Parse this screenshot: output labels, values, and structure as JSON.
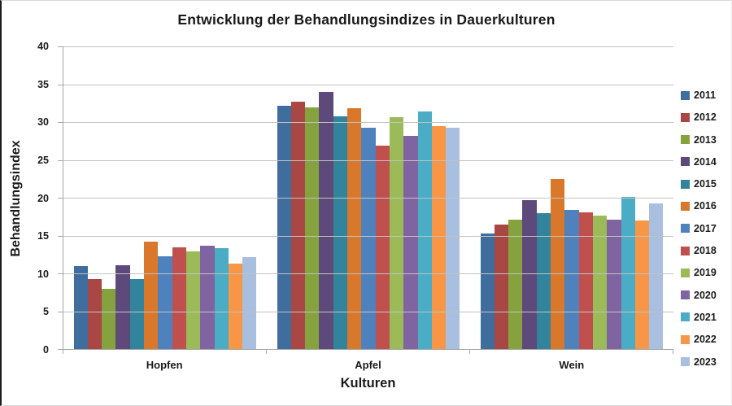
{
  "page": {
    "title": "Entwicklung der Behandlungsindizes in Dauerkulturen"
  },
  "chart_data": {
    "type": "bar",
    "title": "Entwicklung der Behandlungsindizes in Dauerkulturen",
    "xlabel": "Kulturen",
    "ylabel": "Behandlungsindex",
    "ylim": [
      0,
      40
    ],
    "ytick_step": 5,
    "grid": "horizontal",
    "legend_position": "right",
    "categories": [
      "Hopfen",
      "Apfel",
      "Wein"
    ],
    "series": [
      {
        "name": "2011",
        "color": "#3F6D9E",
        "values": [
          11.0,
          32.2,
          15.3
        ]
      },
      {
        "name": "2012",
        "color": "#A84743",
        "values": [
          9.3,
          32.7,
          16.4
        ]
      },
      {
        "name": "2013",
        "color": "#86A23F",
        "values": [
          8.0,
          31.9,
          17.1
        ]
      },
      {
        "name": "2014",
        "color": "#5E497B",
        "values": [
          11.1,
          34.0,
          19.7
        ]
      },
      {
        "name": "2015",
        "color": "#31849B",
        "values": [
          9.2,
          30.8,
          18.0
        ]
      },
      {
        "name": "2016",
        "color": "#D9772B",
        "values": [
          14.2,
          31.8,
          22.5
        ]
      },
      {
        "name": "2017",
        "color": "#4F81BD",
        "values": [
          12.3,
          29.3,
          18.4
        ]
      },
      {
        "name": "2018",
        "color": "#C0504D",
        "values": [
          13.4,
          26.9,
          18.1
        ]
      },
      {
        "name": "2019",
        "color": "#9BBB59",
        "values": [
          12.9,
          30.6,
          17.6
        ]
      },
      {
        "name": "2020",
        "color": "#8064A2",
        "values": [
          13.7,
          28.2,
          17.1
        ]
      },
      {
        "name": "2021",
        "color": "#4BACC6",
        "values": [
          13.3,
          31.4,
          20.1
        ]
      },
      {
        "name": "2022",
        "color": "#F79646",
        "values": [
          11.3,
          29.5,
          17.0
        ]
      },
      {
        "name": "2023",
        "color": "#A9BFDF",
        "values": [
          12.2,
          29.3,
          19.2
        ]
      }
    ]
  }
}
